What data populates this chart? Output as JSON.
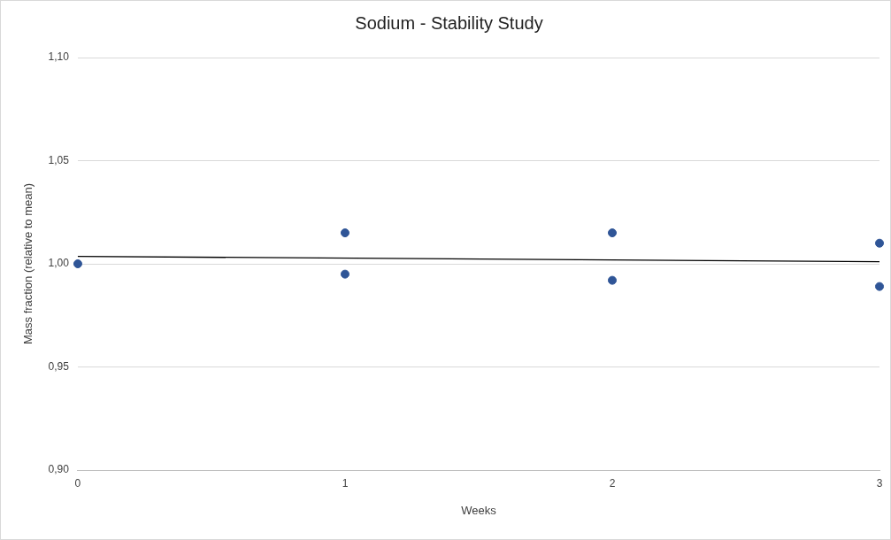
{
  "chart_data": {
    "type": "scatter",
    "title": "Sodium - Stability Study",
    "xlabel": "Weeks",
    "ylabel": "Mass fraction (relative to mean)",
    "xlim": [
      0,
      3
    ],
    "xticks": [
      0,
      1,
      2,
      3
    ],
    "ylim": [
      0.9,
      1.1
    ],
    "yticks": [
      {
        "value": 0.9,
        "label": "0,90"
      },
      {
        "value": 0.95,
        "label": "0,95"
      },
      {
        "value": 1.0,
        "label": "1,00"
      },
      {
        "value": 1.05,
        "label": "1,05"
      },
      {
        "value": 1.1,
        "label": "1,10"
      }
    ],
    "grid": "y",
    "legend": false,
    "marker": "circle",
    "series": [
      {
        "type": "scatter",
        "color": "#2f5597",
        "x": [
          0,
          1,
          1,
          2,
          2,
          3,
          3
        ],
        "values": [
          1.0,
          1.015,
          0.995,
          1.015,
          0.992,
          1.01,
          0.989
        ]
      },
      {
        "type": "line",
        "color": "#000000",
        "line_style": "solid",
        "marker": "none",
        "x": [
          0,
          3
        ],
        "values": [
          1.0036,
          1.001
        ]
      }
    ]
  }
}
